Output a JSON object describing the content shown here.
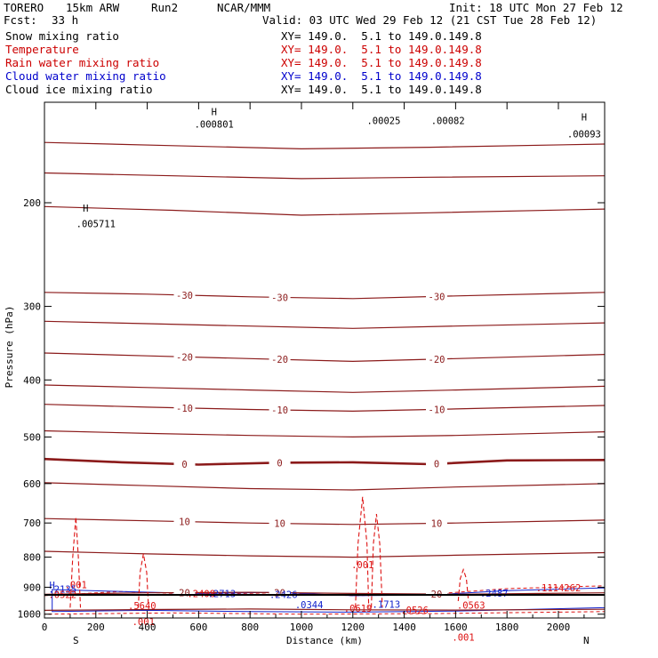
{
  "header": {
    "model": "TORERO",
    "resolution": "15km ARW",
    "run": "Run2",
    "center": "NCAR/MMM",
    "init": "Init: 18 UTC Mon 27 Feb 12",
    "fcst_label": "Fcst:",
    "fcst_value": "33 h",
    "valid": "Valid: 03 UTC Wed 29 Feb 12 (21 CST Tue 28 Feb 12)"
  },
  "legend": [
    {
      "name": "Snow mixing ratio",
      "range": "XY= 149.0.  5.1 to 149.0.149.8",
      "color": "#000000"
    },
    {
      "name": "Temperature",
      "range": "XY= 149.0.  5.1 to 149.0.149.8",
      "color": "#cc0000"
    },
    {
      "name": "Rain water mixing ratio",
      "range": "XY= 149.0.  5.1 to 149.0.149.8",
      "color": "#cc0000"
    },
    {
      "name": "Cloud water mixing ratio",
      "range": "XY= 149.0.  5.1 to 149.0.149.8",
      "color": "#0000cc"
    },
    {
      "name": "Cloud ice mixing ratio",
      "range": "XY= 149.0.  5.1 to 149.0.149.8",
      "color": "#000000"
    }
  ],
  "colors": {
    "temperature": "#8b1a1a",
    "rain": "#dd1111",
    "cloud_water": "#1122cc",
    "axis": "#000000"
  },
  "chart_data": {
    "type": "contour",
    "xlabel": "Distance (km)",
    "ylabel": "Pressure (hPa)",
    "xlim": [
      0,
      2180
    ],
    "ylim": [
      1015,
      135
    ],
    "x_ticks": [
      0,
      200,
      400,
      600,
      800,
      1000,
      1200,
      1400,
      1600,
      1800,
      2000
    ],
    "x_tick_labels": [
      "0",
      "200",
      "400",
      "600",
      "800",
      "1000",
      "1200",
      "1400",
      "1600",
      "1800",
      "2000"
    ],
    "y_ticks": [
      200,
      300,
      400,
      500,
      600,
      700,
      800,
      900,
      1000
    ],
    "y_tick_labels": [
      "200",
      "300",
      "400",
      "500",
      "600",
      "700",
      "800",
      "900",
      "1000"
    ],
    "left_end_label": "S",
    "right_end_label": "N",
    "temperature_contours": [
      {
        "level": -45,
        "label": "",
        "bold": false,
        "points": [
          [
            0,
            158
          ],
          [
            500,
            160
          ],
          [
            1000,
            162
          ],
          [
            1500,
            161
          ],
          [
            2180,
            159
          ]
        ]
      },
      {
        "level": -40,
        "label": "",
        "bold": false,
        "points": [
          [
            0,
            178
          ],
          [
            500,
            180
          ],
          [
            1000,
            182
          ],
          [
            1500,
            181
          ],
          [
            2180,
            180
          ]
        ]
      },
      {
        "level": -35,
        "label": "",
        "bold": false,
        "points": [
          [
            0,
            203
          ],
          [
            500,
            206
          ],
          [
            1000,
            210
          ],
          [
            1500,
            208
          ],
          [
            2180,
            205
          ]
        ]
      },
      {
        "level": -30,
        "label": "-30",
        "bold": false,
        "points": [
          [
            0,
            284
          ],
          [
            400,
            286
          ],
          [
            800,
            289
          ],
          [
            1200,
            291
          ],
          [
            1600,
            288
          ],
          [
            2180,
            284
          ]
        ]
      },
      {
        "level": -25,
        "label": "",
        "bold": false,
        "points": [
          [
            0,
            318
          ],
          [
            400,
            321
          ],
          [
            800,
            324
          ],
          [
            1200,
            327
          ],
          [
            1600,
            324
          ],
          [
            2180,
            320
          ]
        ]
      },
      {
        "level": -20,
        "label": "-20",
        "bold": false,
        "points": [
          [
            0,
            360
          ],
          [
            400,
            364
          ],
          [
            800,
            368
          ],
          [
            1200,
            372
          ],
          [
            1600,
            368
          ],
          [
            2180,
            362
          ]
        ]
      },
      {
        "level": -15,
        "label": "",
        "bold": false,
        "points": [
          [
            0,
            408
          ],
          [
            400,
            412
          ],
          [
            800,
            416
          ],
          [
            1200,
            420
          ],
          [
            1600,
            416
          ],
          [
            2180,
            410
          ]
        ]
      },
      {
        "level": -10,
        "label": "-10",
        "bold": false,
        "points": [
          [
            0,
            440
          ],
          [
            400,
            445
          ],
          [
            800,
            449
          ],
          [
            1200,
            452
          ],
          [
            1600,
            448
          ],
          [
            2180,
            442
          ]
        ]
      },
      {
        "level": -5,
        "label": "",
        "bold": false,
        "points": [
          [
            0,
            488
          ],
          [
            400,
            493
          ],
          [
            800,
            497
          ],
          [
            1200,
            500
          ],
          [
            1600,
            497
          ],
          [
            2180,
            490
          ]
        ]
      },
      {
        "level": 0,
        "label": "0",
        "bold": true,
        "points": [
          [
            0,
            545
          ],
          [
            300,
            552
          ],
          [
            600,
            557
          ],
          [
            900,
            553
          ],
          [
            1200,
            552
          ],
          [
            1500,
            556
          ],
          [
            1800,
            548
          ],
          [
            2180,
            547
          ]
        ]
      },
      {
        "level": 5,
        "label": "",
        "bold": false,
        "points": [
          [
            0,
            598
          ],
          [
            400,
            605
          ],
          [
            800,
            612
          ],
          [
            1200,
            615
          ],
          [
            1600,
            608
          ],
          [
            2180,
            600
          ]
        ]
      },
      {
        "level": 10,
        "label": "10",
        "bold": false,
        "points": [
          [
            0,
            688
          ],
          [
            400,
            694
          ],
          [
            800,
            700
          ],
          [
            1200,
            704
          ],
          [
            1600,
            700
          ],
          [
            2180,
            692
          ]
        ]
      },
      {
        "level": 15,
        "label": "",
        "bold": false,
        "points": [
          [
            0,
            782
          ],
          [
            400,
            790
          ],
          [
            800,
            796
          ],
          [
            1200,
            800
          ],
          [
            1600,
            794
          ],
          [
            2180,
            786
          ]
        ]
      },
      {
        "level": 20,
        "label": "20",
        "bold": false,
        "points": [
          [
            0,
            925
          ],
          [
            400,
            920
          ],
          [
            800,
            918
          ],
          [
            1200,
            922
          ],
          [
            1600,
            925
          ],
          [
            2180,
            920
          ]
        ]
      },
      {
        "level": 25,
        "label": "",
        "bold": false,
        "points": [
          [
            0,
            985
          ],
          [
            400,
            982
          ],
          [
            800,
            980
          ],
          [
            1200,
            983
          ],
          [
            1600,
            984
          ],
          [
            2180,
            981
          ]
        ]
      }
    ],
    "rain_contours": [
      {
        "label": ".001",
        "points": [
          [
            100,
            975
          ],
          [
            110,
            800
          ],
          [
            122,
            684
          ],
          [
            132,
            800
          ],
          [
            140,
            975
          ]
        ]
      },
      {
        "label": ".001",
        "points": [
          [
            365,
            975
          ],
          [
            372,
            850
          ],
          [
            385,
            790
          ],
          [
            398,
            850
          ],
          [
            405,
            975
          ]
        ]
      },
      {
        "label": ".001",
        "points": [
          [
            1210,
            975
          ],
          [
            1220,
            760
          ],
          [
            1238,
            632
          ],
          [
            1255,
            760
          ],
          [
            1262,
            975
          ]
        ]
      },
      {
        "label": "",
        "points": [
          [
            1272,
            975
          ],
          [
            1280,
            760
          ],
          [
            1292,
            676
          ],
          [
            1305,
            760
          ],
          [
            1315,
            975
          ]
        ]
      },
      {
        "label": ".001",
        "points": [
          [
            1610,
            950
          ],
          [
            1618,
            870
          ],
          [
            1630,
            840
          ],
          [
            1642,
            870
          ],
          [
            1650,
            950
          ]
        ]
      }
    ],
    "rain_band": {
      "top": [
        [
          0,
          930
        ],
        [
          300,
          915
        ],
        [
          600,
          925
        ],
        [
          900,
          920
        ],
        [
          1200,
          930
        ],
        [
          1500,
          925
        ],
        [
          1800,
          905
        ],
        [
          2180,
          895
        ]
      ],
      "bottom": [
        [
          0,
          1000
        ],
        [
          500,
          995
        ],
        [
          1000,
          1000
        ],
        [
          1500,
          998
        ],
        [
          2180,
          990
        ]
      ]
    },
    "cloud_water_band": {
      "top": [
        [
          30,
          908
        ],
        [
          300,
          915
        ],
        [
          600,
          922
        ],
        [
          900,
          918
        ],
        [
          1200,
          930
        ],
        [
          1500,
          928
        ],
        [
          1800,
          912
        ],
        [
          2180,
          902
        ]
      ],
      "bottom": [
        [
          30,
          990
        ],
        [
          400,
          985
        ],
        [
          800,
          990
        ],
        [
          1200,
          992
        ],
        [
          1600,
          988
        ],
        [
          2180,
          975
        ]
      ]
    },
    "maxima_labels": [
      {
        "text": "H",
        "x": 660,
        "p": 142,
        "color": "#000000"
      },
      {
        "text": ".000801",
        "x": 660,
        "p": 149,
        "color": "#000000"
      },
      {
        "text": ".00025",
        "x": 1320,
        "p": 147,
        "color": "#000000"
      },
      {
        "text": ".00082",
        "x": 1570,
        "p": 147,
        "color": "#000000"
      },
      {
        "text": "H",
        "x": 2100,
        "p": 145,
        "color": "#000000"
      },
      {
        "text": ".00093",
        "x": 2100,
        "p": 155,
        "color": "#000000"
      },
      {
        "text": "H",
        "x": 160,
        "p": 207,
        "color": "#000000"
      },
      {
        "text": ".005711",
        "x": 200,
        "p": 220,
        "color": "#000000"
      },
      {
        "text": "H",
        "x": 30,
        "p": 905,
        "color": "#1122cc"
      },
      {
        "text": ".2135",
        "x": 70,
        "p": 920,
        "color": "#1122cc"
      },
      {
        "text": ".0522",
        "x": 70,
        "p": 938,
        "color": "#dd1111"
      },
      {
        "text": ".5640",
        "x": 380,
        "p": 980,
        "color": "#dd1111"
      },
      {
        "text": ".2408",
        "x": 610,
        "p": 935,
        "color": "#dd1111"
      },
      {
        "text": ".2713",
        "x": 690,
        "p": 935,
        "color": "#1122cc"
      },
      {
        "text": ".2426",
        "x": 930,
        "p": 938,
        "color": "#1122cc"
      },
      {
        "text": ".0344",
        "x": 1030,
        "p": 977,
        "color": "#1122cc"
      },
      {
        "text": ".0619",
        "x": 1220,
        "p": 990,
        "color": "#dd1111"
      },
      {
        "text": ".1713",
        "x": 1330,
        "p": 975,
        "color": "#1122cc"
      },
      {
        "text": ".0526",
        "x": 1440,
        "p": 997,
        "color": "#dd1111"
      },
      {
        "text": ".0563",
        "x": 1660,
        "p": 978,
        "color": "#dd1111"
      },
      {
        "text": ".2487",
        "x": 1750,
        "p": 934,
        "color": "#1122cc"
      },
      {
        "text": ".1114262",
        "x": 2000,
        "p": 915,
        "color": "#dd1111"
      }
    ]
  }
}
